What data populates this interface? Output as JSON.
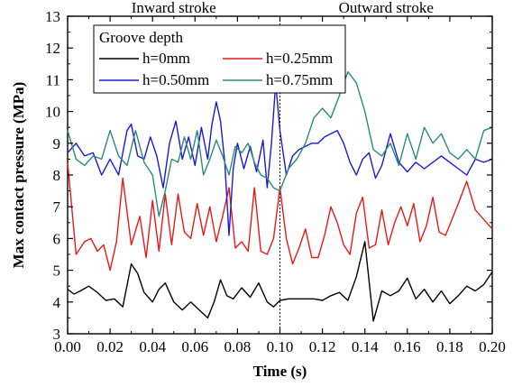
{
  "chart_data": {
    "type": "line",
    "title": "",
    "xlabel": "Time (s)",
    "ylabel": "Max contact pressure (MPa)",
    "xlim": [
      0.0,
      0.2
    ],
    "ylim": [
      3,
      13
    ],
    "x_ticks": [
      0.0,
      0.02,
      0.04,
      0.06,
      0.08,
      0.1,
      0.12,
      0.14,
      0.16,
      0.18,
      0.2
    ],
    "x_tick_labels": [
      "0.00",
      "0.02",
      "0.04",
      "0.06",
      "0.08",
      "0.10",
      "0.12",
      "0.14",
      "0.16",
      "0.18",
      "0.20"
    ],
    "y_ticks": [
      3,
      4,
      5,
      6,
      7,
      8,
      9,
      10,
      11,
      12,
      13
    ],
    "y_tick_labels": [
      "3",
      "4",
      "5",
      "6",
      "7",
      "8",
      "9",
      "10",
      "11",
      "12",
      "13"
    ],
    "grid": false,
    "legend": {
      "title": "Groove depth",
      "placement": "top-left",
      "columns": 2
    },
    "annotations": [
      {
        "text": "Inward stroke",
        "x": 0.05
      },
      {
        "text": "Outward stroke",
        "x": 0.15
      }
    ],
    "divider_x": 0.1,
    "series": [
      {
        "name": "h=0mm",
        "color": "#000000",
        "x": [
          0.0,
          0.003,
          0.006,
          0.01,
          0.014,
          0.018,
          0.022,
          0.026,
          0.03,
          0.033,
          0.036,
          0.04,
          0.043,
          0.046,
          0.05,
          0.054,
          0.058,
          0.062,
          0.066,
          0.069,
          0.072,
          0.075,
          0.078,
          0.082,
          0.086,
          0.09,
          0.094,
          0.097,
          0.1,
          0.104,
          0.11,
          0.116,
          0.12,
          0.124,
          0.128,
          0.132,
          0.136,
          0.14,
          0.144,
          0.148,
          0.152,
          0.156,
          0.16,
          0.164,
          0.168,
          0.172,
          0.176,
          0.18,
          0.184,
          0.188,
          0.192,
          0.196,
          0.2
        ],
        "y": [
          4.4,
          4.25,
          4.35,
          4.5,
          4.3,
          4.05,
          4.1,
          3.85,
          5.2,
          4.9,
          4.3,
          4.0,
          4.4,
          4.6,
          4.0,
          3.75,
          4.0,
          3.75,
          3.5,
          4.0,
          4.7,
          4.2,
          4.1,
          4.45,
          4.15,
          4.6,
          4.0,
          3.85,
          4.05,
          4.1,
          4.1,
          4.1,
          4.05,
          4.2,
          4.3,
          4.05,
          4.8,
          5.9,
          3.4,
          4.35,
          4.2,
          4.35,
          4.75,
          4.1,
          4.4,
          4.0,
          4.35,
          3.95,
          4.2,
          4.5,
          4.35,
          4.55,
          4.95
        ]
      },
      {
        "name": "h=0.25mm",
        "color": "#e8191b",
        "x": [
          0.0,
          0.004,
          0.008,
          0.011,
          0.014,
          0.017,
          0.02,
          0.023,
          0.026,
          0.03,
          0.034,
          0.037,
          0.04,
          0.043,
          0.046,
          0.049,
          0.052,
          0.055,
          0.058,
          0.061,
          0.064,
          0.067,
          0.07,
          0.073,
          0.076,
          0.079,
          0.082,
          0.085,
          0.088,
          0.091,
          0.094,
          0.097,
          0.1,
          0.103,
          0.106,
          0.109,
          0.112,
          0.115,
          0.118,
          0.121,
          0.124,
          0.127,
          0.13,
          0.133,
          0.136,
          0.139,
          0.142,
          0.145,
          0.148,
          0.151,
          0.154,
          0.157,
          0.16,
          0.163,
          0.166,
          0.169,
          0.172,
          0.175,
          0.178,
          0.181,
          0.184,
          0.188,
          0.192,
          0.196,
          0.2
        ],
        "y": [
          8.4,
          5.5,
          5.9,
          6.0,
          5.6,
          5.8,
          5.0,
          5.9,
          7.9,
          5.8,
          6.7,
          5.4,
          7.2,
          5.6,
          7.4,
          5.8,
          7.4,
          6.2,
          6.0,
          7.1,
          6.1,
          7.0,
          5.9,
          6.7,
          7.6,
          5.7,
          5.9,
          5.6,
          7.6,
          5.6,
          5.5,
          6.0,
          7.6,
          6.0,
          5.2,
          5.7,
          6.3,
          5.4,
          5.4,
          6.1,
          7.0,
          6.5,
          5.8,
          5.5,
          6.8,
          7.3,
          5.7,
          5.8,
          6.9,
          5.8,
          6.5,
          7.0,
          6.4,
          7.1,
          5.9,
          6.4,
          7.3,
          6.2,
          6.1,
          6.6,
          7.1,
          7.8,
          6.9,
          6.6,
          6.3
        ]
      },
      {
        "name": "h=0.50mm",
        "color": "#1a1ad4",
        "x": [
          0.0,
          0.004,
          0.008,
          0.012,
          0.016,
          0.02,
          0.024,
          0.028,
          0.03,
          0.033,
          0.036,
          0.039,
          0.042,
          0.045,
          0.048,
          0.051,
          0.054,
          0.057,
          0.06,
          0.063,
          0.066,
          0.068,
          0.07,
          0.072,
          0.074,
          0.076,
          0.078,
          0.08,
          0.083,
          0.086,
          0.089,
          0.092,
          0.094,
          0.096,
          0.098,
          0.1,
          0.103,
          0.106,
          0.109,
          0.112,
          0.115,
          0.118,
          0.121,
          0.124,
          0.127,
          0.13,
          0.133,
          0.136,
          0.139,
          0.142,
          0.145,
          0.148,
          0.152,
          0.156,
          0.16,
          0.164,
          0.168,
          0.172,
          0.176,
          0.18,
          0.184,
          0.188,
          0.192,
          0.196,
          0.2
        ],
        "y": [
          8.7,
          9.0,
          8.6,
          8.7,
          8.0,
          8.5,
          8.0,
          9.4,
          9.6,
          8.6,
          8.5,
          9.2,
          8.6,
          7.6,
          9.0,
          9.7,
          8.5,
          9.2,
          8.3,
          9.5,
          8.5,
          9.6,
          10.3,
          9.7,
          8.4,
          6.1,
          8.2,
          9.0,
          8.2,
          8.9,
          8.1,
          9.1,
          7.6,
          9.0,
          10.9,
          9.4,
          8.0,
          8.6,
          8.8,
          8.9,
          9.0,
          9.0,
          9.2,
          9.3,
          9.4,
          9.0,
          8.4,
          8.0,
          8.5,
          8.7,
          7.9,
          8.3,
          9.3,
          8.4,
          8.1,
          8.4,
          8.2,
          8.4,
          8.6,
          8.4,
          8.2,
          8.0,
          8.5,
          8.4,
          8.5
        ]
      },
      {
        "name": "h=0.75mm",
        "color": "#2a8a7d",
        "x": [
          0.0,
          0.004,
          0.008,
          0.012,
          0.016,
          0.02,
          0.024,
          0.028,
          0.032,
          0.036,
          0.04,
          0.043,
          0.046,
          0.049,
          0.052,
          0.055,
          0.058,
          0.061,
          0.064,
          0.067,
          0.07,
          0.073,
          0.076,
          0.079,
          0.082,
          0.085,
          0.088,
          0.091,
          0.094,
          0.097,
          0.1,
          0.104,
          0.108,
          0.112,
          0.116,
          0.12,
          0.124,
          0.128,
          0.132,
          0.136,
          0.14,
          0.144,
          0.148,
          0.152,
          0.156,
          0.16,
          0.164,
          0.168,
          0.172,
          0.176,
          0.18,
          0.184,
          0.188,
          0.192,
          0.196,
          0.2
        ],
        "y": [
          9.4,
          8.5,
          8.3,
          8.6,
          8.5,
          9.4,
          8.6,
          8.3,
          9.4,
          8.4,
          8.0,
          6.7,
          7.5,
          8.5,
          8.4,
          9.2,
          8.5,
          9.4,
          8.0,
          8.5,
          9.1,
          8.6,
          8.0,
          8.9,
          8.7,
          9.0,
          8.4,
          8.0,
          7.9,
          7.6,
          7.5,
          8.2,
          8.5,
          9.0,
          9.8,
          10.1,
          9.8,
          10.5,
          11.25,
          10.9,
          10.0,
          8.8,
          8.6,
          9.0,
          8.3,
          9.3,
          8.5,
          9.5,
          9.0,
          9.3,
          8.7,
          8.5,
          8.8,
          8.5,
          9.4,
          9.5
        ]
      }
    ]
  }
}
